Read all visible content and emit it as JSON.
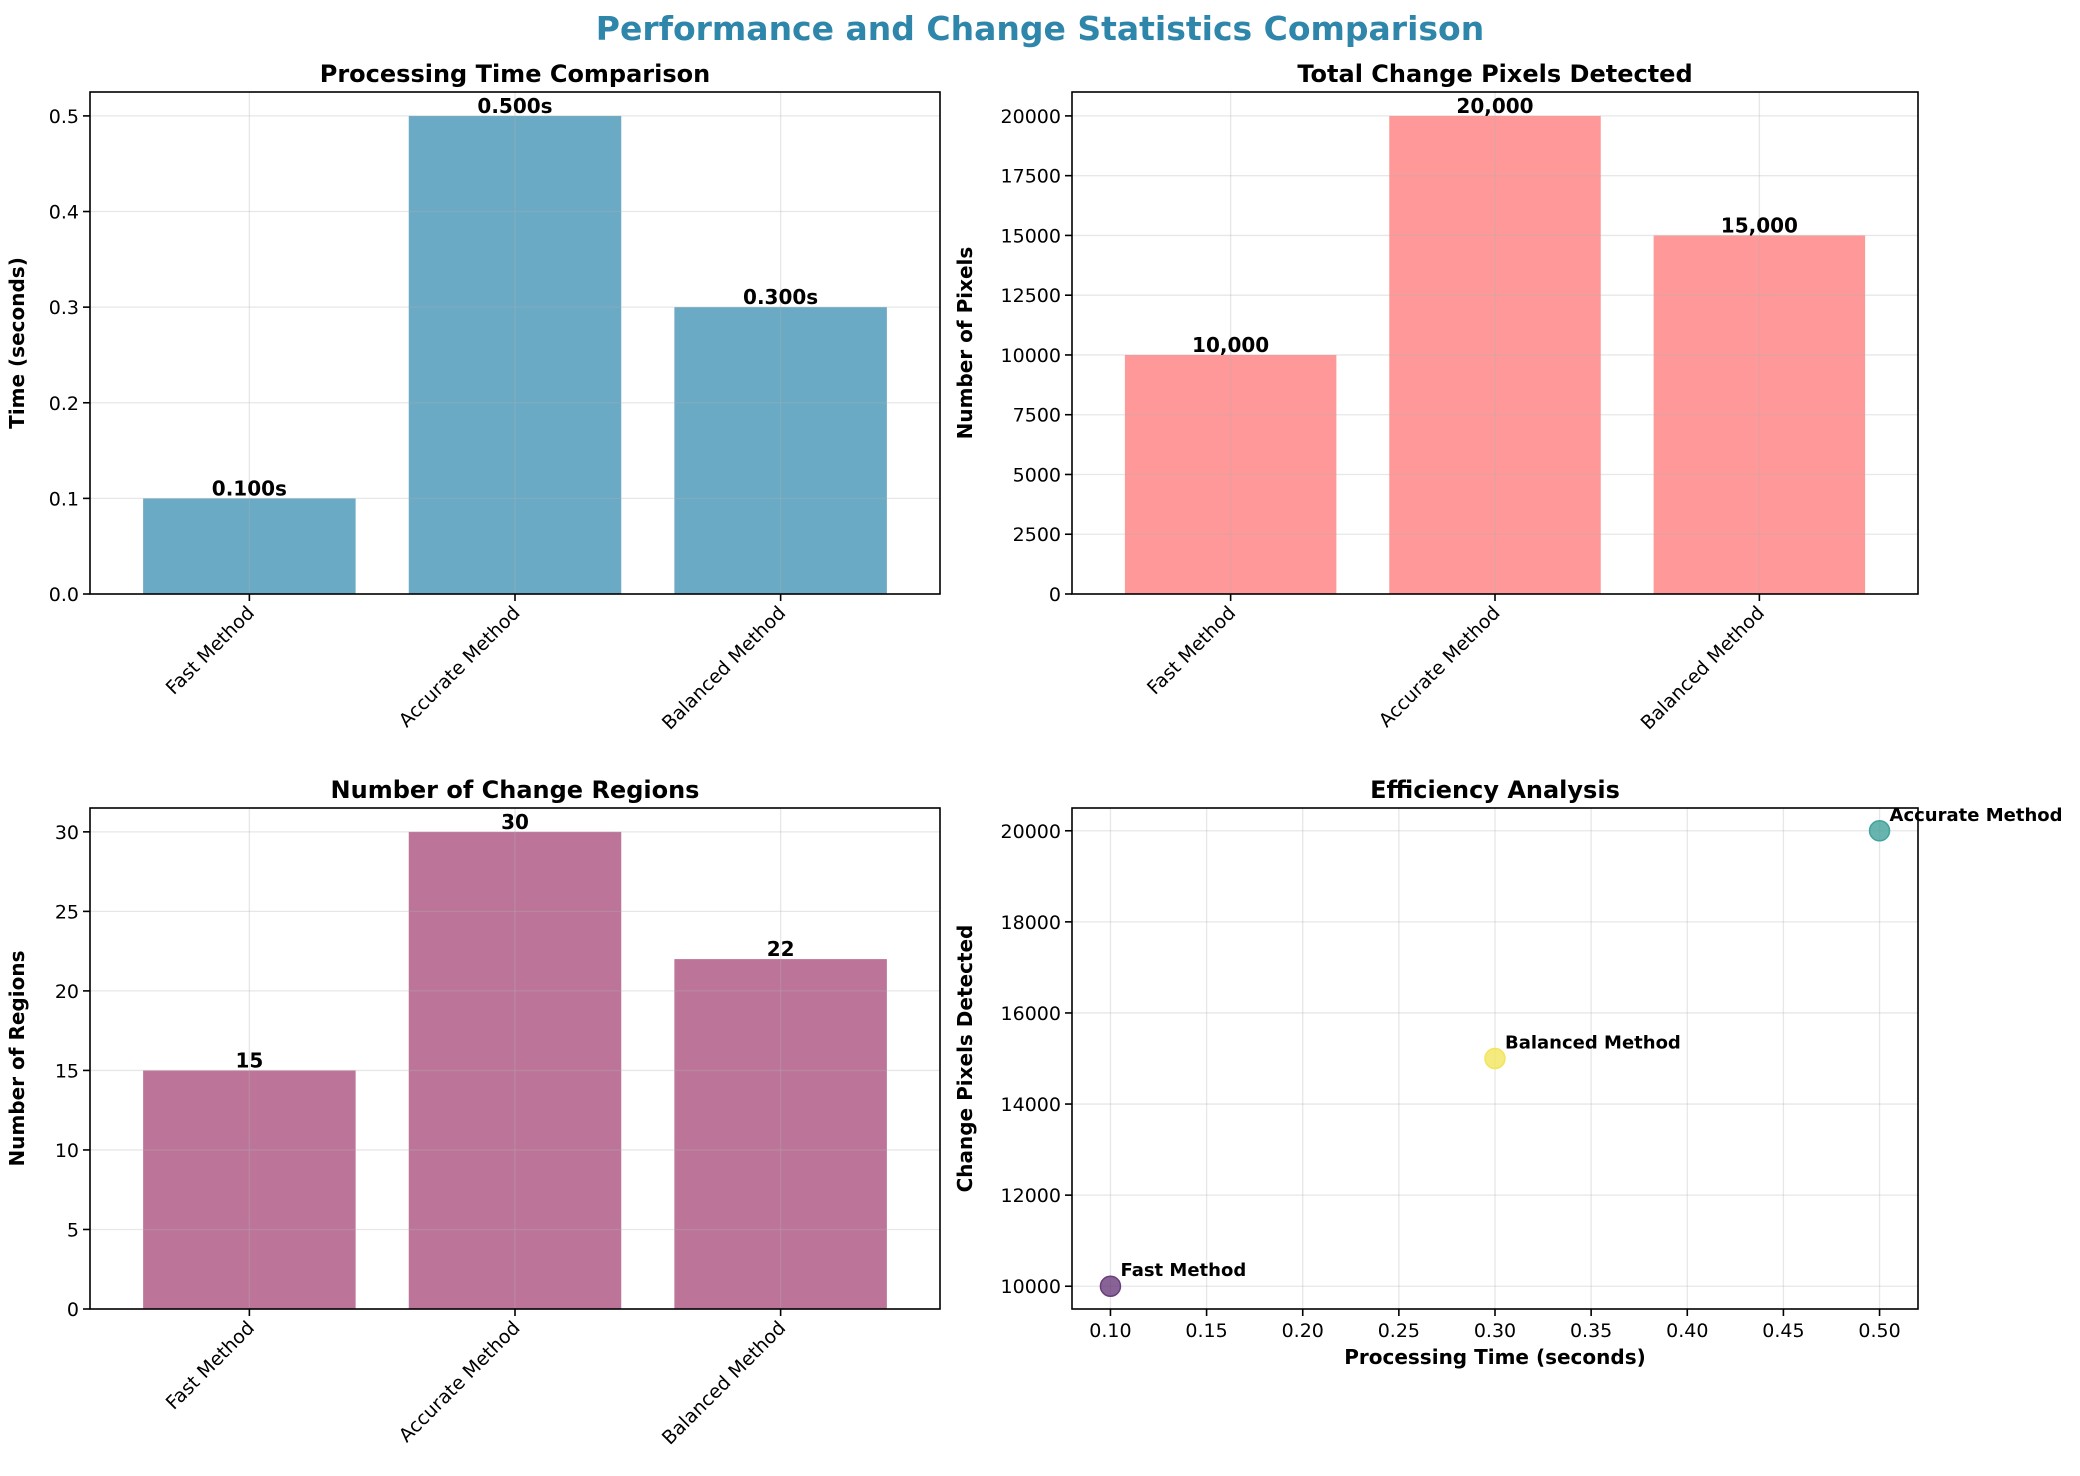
{
  "figure": {
    "title": "Performance and Change Statistics Comparison"
  },
  "chart_data": [
    {
      "type": "bar",
      "title": "Processing Time Comparison",
      "xlabel": "",
      "ylabel": "Time (seconds)",
      "categories": [
        "Fast Method",
        "Accurate Method",
        "Balanced Method"
      ],
      "values": [
        0.1,
        0.5,
        0.3
      ],
      "value_labels": [
        "0.100s",
        "0.500s",
        "0.300s"
      ],
      "ylim": [
        0,
        0.525
      ],
      "yticks": [
        0.0,
        0.1,
        0.2,
        0.3,
        0.4,
        0.5
      ],
      "ytick_labels": [
        "0.0",
        "0.1",
        "0.2",
        "0.3",
        "0.4",
        "0.5"
      ],
      "color": "#6BAAC4",
      "grid": true
    },
    {
      "type": "bar",
      "title": "Total Change Pixels Detected",
      "xlabel": "",
      "ylabel": "Number of Pixels",
      "categories": [
        "Fast Method",
        "Accurate Method",
        "Balanced Method"
      ],
      "values": [
        10000,
        20000,
        15000
      ],
      "value_labels": [
        "10,000",
        "20,000",
        "15,000"
      ],
      "ylim": [
        0,
        21000
      ],
      "yticks": [
        0,
        2500,
        5000,
        7500,
        10000,
        12500,
        15000,
        17500,
        20000
      ],
      "ytick_labels": [
        "0",
        "2500",
        "5000",
        "7500",
        "10000",
        "12500",
        "15000",
        "17500",
        "20000"
      ],
      "color": "#FF9999",
      "grid": true
    },
    {
      "type": "bar",
      "title": "Number of Change Regions",
      "xlabel": "",
      "ylabel": "Number of Regions",
      "categories": [
        "Fast Method",
        "Accurate Method",
        "Balanced Method"
      ],
      "values": [
        15,
        30,
        22
      ],
      "value_labels": [
        "15",
        "30",
        "22"
      ],
      "ylim": [
        0,
        31.5
      ],
      "yticks": [
        0,
        5,
        10,
        15,
        20,
        25,
        30
      ],
      "ytick_labels": [
        "0",
        "5",
        "10",
        "15",
        "20",
        "25",
        "30"
      ],
      "color": "#BC7599",
      "grid": true
    },
    {
      "type": "scatter",
      "title": "Efficiency Analysis",
      "xlabel": "Processing Time (seconds)",
      "ylabel": "Change Pixels Detected",
      "points": [
        {
          "label": "Fast Method",
          "x": 0.1,
          "y": 10000,
          "color": "#6A3D7C"
        },
        {
          "label": "Accurate Method",
          "x": 0.5,
          "y": 20000,
          "color": "#42A39B"
        },
        {
          "label": "Balanced Method",
          "x": 0.3,
          "y": 15000,
          "color": "#F2E55C"
        }
      ],
      "xlim": [
        0.08,
        0.52
      ],
      "ylim": [
        9500,
        20500
      ],
      "xticks": [
        0.1,
        0.15,
        0.2,
        0.25,
        0.3,
        0.35,
        0.4,
        0.45,
        0.5
      ],
      "xtick_labels": [
        "0.10",
        "0.15",
        "0.20",
        "0.25",
        "0.30",
        "0.35",
        "0.40",
        "0.45",
        "0.50"
      ],
      "yticks": [
        10000,
        12000,
        14000,
        16000,
        18000,
        20000
      ],
      "ytick_labels": [
        "10000",
        "12000",
        "14000",
        "16000",
        "18000",
        "20000"
      ],
      "grid": true
    }
  ]
}
